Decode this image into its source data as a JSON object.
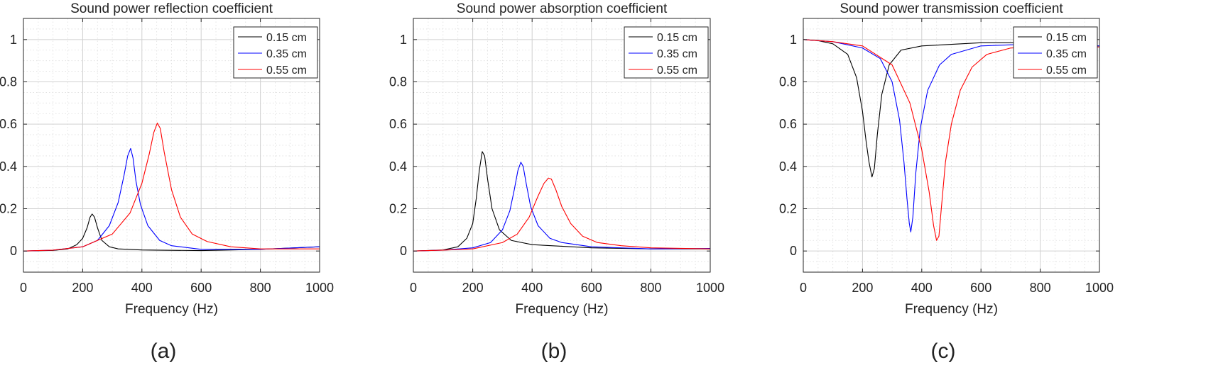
{
  "chart_data": [
    {
      "type": "line",
      "panel_label": "(a)",
      "title": "Sound power reflection coefficient",
      "xlabel": "Frequency (Hz)",
      "ylabel": "",
      "xlim": [
        0,
        1000
      ],
      "ylim": [
        -0.1,
        1.1
      ],
      "xticks": [
        "0",
        "200",
        "400",
        "600",
        "800",
        "1000"
      ],
      "yticks": [
        "0",
        "0.2",
        "0.4",
        "0.6",
        "0.8",
        "1"
      ],
      "grid": true,
      "legend_position": "top-right",
      "series": [
        {
          "name": "0.15 cm",
          "color": "#000000",
          "x": [
            0,
            100,
            150,
            180,
            200,
            215,
            225,
            232,
            240,
            250,
            265,
            290,
            320,
            400,
            600,
            800,
            1000
          ],
          "y": [
            0,
            0.003,
            0.01,
            0.03,
            0.06,
            0.11,
            0.16,
            0.175,
            0.16,
            0.11,
            0.05,
            0.02,
            0.01,
            0.005,
            0.002,
            0.008,
            0.02
          ]
        },
        {
          "name": "0.35 cm",
          "color": "#0000ff",
          "x": [
            0,
            100,
            200,
            250,
            290,
            320,
            340,
            352,
            362,
            370,
            380,
            395,
            420,
            460,
            500,
            600,
            800,
            1000
          ],
          "y": [
            0,
            0.004,
            0.02,
            0.05,
            0.12,
            0.23,
            0.36,
            0.45,
            0.485,
            0.44,
            0.33,
            0.22,
            0.12,
            0.05,
            0.025,
            0.008,
            0.008,
            0.02
          ]
        },
        {
          "name": "0.55 cm",
          "color": "#ff0000",
          "x": [
            0,
            100,
            200,
            300,
            360,
            400,
            425,
            440,
            452,
            462,
            475,
            500,
            530,
            570,
            620,
            700,
            800,
            1000
          ],
          "y": [
            0,
            0.004,
            0.02,
            0.08,
            0.18,
            0.32,
            0.46,
            0.56,
            0.605,
            0.58,
            0.47,
            0.29,
            0.16,
            0.08,
            0.045,
            0.02,
            0.01,
            0.01
          ]
        }
      ]
    },
    {
      "type": "line",
      "panel_label": "(b)",
      "title": "Sound power absorption coefficient",
      "xlabel": "Frequency (Hz)",
      "ylabel": "",
      "xlim": [
        0,
        1000
      ],
      "ylim": [
        -0.1,
        1.1
      ],
      "xticks": [
        "0",
        "200",
        "400",
        "600",
        "800",
        "1000"
      ],
      "yticks": [
        "0",
        "0.2",
        "0.4",
        "0.6",
        "0.8",
        "1"
      ],
      "grid": true,
      "legend_position": "top-right",
      "series": [
        {
          "name": "0.15 cm",
          "color": "#000000",
          "x": [
            0,
            100,
            150,
            180,
            200,
            212,
            222,
            232,
            240,
            250,
            265,
            290,
            330,
            400,
            600,
            800,
            1000
          ],
          "y": [
            0,
            0.005,
            0.02,
            0.06,
            0.13,
            0.25,
            0.38,
            0.47,
            0.45,
            0.34,
            0.2,
            0.1,
            0.05,
            0.03,
            0.015,
            0.01,
            0.01
          ]
        },
        {
          "name": "0.35 cm",
          "color": "#0000ff",
          "x": [
            0,
            100,
            200,
            260,
            300,
            325,
            340,
            352,
            362,
            370,
            380,
            395,
            420,
            460,
            500,
            600,
            800,
            1000
          ],
          "y": [
            0,
            0.004,
            0.015,
            0.04,
            0.1,
            0.19,
            0.29,
            0.38,
            0.42,
            0.4,
            0.32,
            0.21,
            0.12,
            0.06,
            0.04,
            0.02,
            0.01,
            0.012
          ]
        },
        {
          "name": "0.55 cm",
          "color": "#ff0000",
          "x": [
            0,
            100,
            200,
            300,
            350,
            390,
            420,
            440,
            455,
            465,
            480,
            500,
            530,
            570,
            620,
            700,
            800,
            1000
          ],
          "y": [
            0,
            0.004,
            0.01,
            0.04,
            0.08,
            0.16,
            0.26,
            0.32,
            0.345,
            0.34,
            0.29,
            0.21,
            0.13,
            0.07,
            0.04,
            0.025,
            0.015,
            0.01
          ]
        }
      ]
    },
    {
      "type": "line",
      "panel_label": "(c)",
      "title": "Sound power transmission coefficient",
      "xlabel": "Frequency (Hz)",
      "ylabel": "",
      "xlim": [
        0,
        1000
      ],
      "ylim": [
        -0.1,
        1.1
      ],
      "xticks": [
        "0",
        "200",
        "400",
        "600",
        "800",
        "1000"
      ],
      "yticks": [
        "0",
        "0.2",
        "0.4",
        "0.6",
        "0.8",
        "1"
      ],
      "grid": true,
      "legend_position": "top-right",
      "series": [
        {
          "name": "0.15 cm",
          "color": "#000000",
          "x": [
            0,
            50,
            100,
            150,
            180,
            200,
            212,
            222,
            232,
            240,
            250,
            265,
            290,
            330,
            400,
            600,
            800,
            1000
          ],
          "y": [
            1,
            0.995,
            0.98,
            0.93,
            0.82,
            0.66,
            0.52,
            0.42,
            0.35,
            0.39,
            0.55,
            0.74,
            0.88,
            0.95,
            0.97,
            0.985,
            0.985,
            0.97
          ]
        },
        {
          "name": "0.35 cm",
          "color": "#0000ff",
          "x": [
            0,
            100,
            200,
            260,
            300,
            325,
            340,
            350,
            358,
            363,
            370,
            380,
            395,
            420,
            460,
            500,
            600,
            800,
            1000
          ],
          "y": [
            1,
            0.99,
            0.96,
            0.91,
            0.8,
            0.62,
            0.42,
            0.25,
            0.13,
            0.09,
            0.16,
            0.37,
            0.58,
            0.76,
            0.88,
            0.93,
            0.97,
            0.98,
            0.97
          ]
        },
        {
          "name": "0.55 cm",
          "color": "#ff0000",
          "x": [
            0,
            100,
            200,
            300,
            360,
            400,
            425,
            440,
            450,
            458,
            466,
            480,
            500,
            530,
            570,
            620,
            700,
            800,
            1000
          ],
          "y": [
            1,
            0.99,
            0.97,
            0.88,
            0.7,
            0.48,
            0.28,
            0.12,
            0.05,
            0.07,
            0.2,
            0.42,
            0.6,
            0.76,
            0.87,
            0.93,
            0.96,
            0.97,
            0.965
          ]
        }
      ]
    }
  ]
}
